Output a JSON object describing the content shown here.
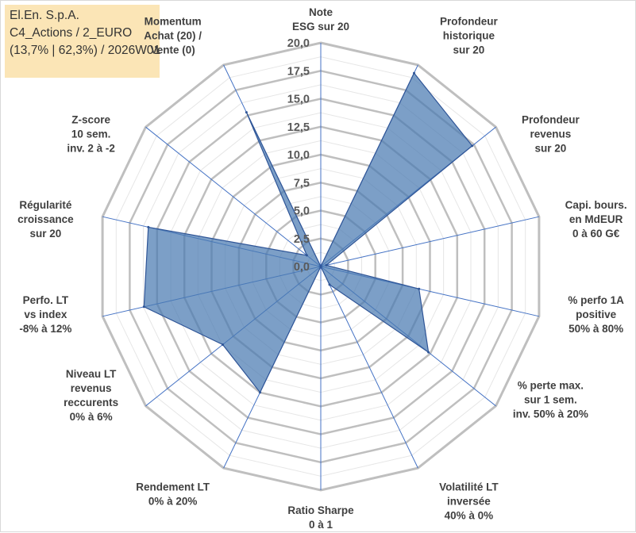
{
  "info": {
    "line1": "El.En. S.p.A.",
    "line2": "C4_Actions / 2_EURO",
    "line3": "(13,7% | 62,3%) / 2026W01"
  },
  "colors": {
    "fill": "#4a7ab2",
    "outline": "#2f5597",
    "spoke": "#4472c4",
    "grid_major": "#bfbfbf",
    "grid_minor": "#e6e6e6"
  },
  "chart_data": {
    "type": "radar",
    "title": "",
    "rmin": 0,
    "rmax": 20,
    "tick_labels": [
      "0,0",
      "2,5",
      "5,0",
      "7,5",
      "10,0",
      "12,5",
      "15,0",
      "17,5",
      "20,0"
    ],
    "categories": [
      [
        "Note",
        "ESG sur 20"
      ],
      [
        "Profondeur",
        "historique",
        "sur 20"
      ],
      [
        "Profondeur",
        "revenus",
        "sur 20"
      ],
      [
        "Capi. bours.",
        "en MdEUR",
        "0 à 60 G€"
      ],
      [
        "% perfo 1A",
        "positive",
        "50% à 80%"
      ],
      [
        "% perte max.",
        "sur 1 sem.",
        "inv. 50% à 20%"
      ],
      [
        "Volatilité LT",
        "inversée",
        "40% à 0%"
      ],
      [
        "Ratio Sharpe",
        "0 à 1"
      ],
      [
        "Rendement LT",
        "0% à 20%"
      ],
      [
        "Niveau LT",
        "revenus",
        "reccurents",
        "0% à 6%"
      ],
      [
        "Perfo. LT",
        "vs index",
        "-8% à 12%"
      ],
      [
        "Régularité",
        "croissance",
        "sur 20"
      ],
      [
        "Z-score",
        "10 sem.",
        "inv. 2 à -2"
      ],
      [
        "Momentum",
        "Achat (20) /",
        "Vente (0)"
      ]
    ],
    "series": [
      {
        "name": "El.En. S.p.A.",
        "values": [
          0,
          19.2,
          17.3,
          0.5,
          9.0,
          12.3,
          1.8,
          0,
          12.5,
          11.2,
          16.2,
          15.8,
          1.6,
          15.3
        ]
      }
    ]
  }
}
